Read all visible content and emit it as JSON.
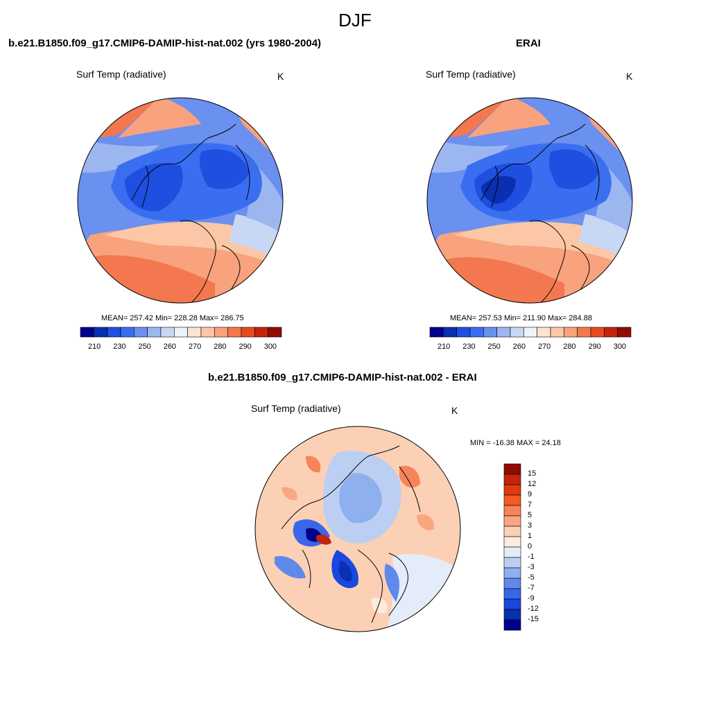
{
  "figure": {
    "season_title": "DJF"
  },
  "chart_data": [
    {
      "type": "polar-contour-map",
      "title": "b.e21.B1850.f09_g17.CMIP6-DAMIP-hist-nat.002 (yrs 1980-2004)",
      "variable": "Surf Temp (radiative)",
      "units": "K",
      "stats_text": "MEAN= 257.42  Min= 228.28  Max= 286.75",
      "mean": 257.42,
      "min": 228.28,
      "max": 286.75,
      "colorbar": {
        "orientation": "horizontal",
        "tick_labels": [
          "210",
          "230",
          "250",
          "260",
          "270",
          "280",
          "290",
          "300"
        ],
        "colors": [
          "#00008c",
          "#0a2fb0",
          "#1e4fe0",
          "#3a6ef0",
          "#6a90f0",
          "#9cb6f0",
          "#c8d8f4",
          "#eef3fb",
          "#fde4d2",
          "#fcc7a6",
          "#f9a27e",
          "#f3784f",
          "#e84a1e",
          "#c4240c",
          "#8f0c04"
        ]
      }
    },
    {
      "type": "polar-contour-map",
      "title": "ERAI",
      "variable": "Surf Temp (radiative)",
      "units": "K",
      "stats_text": "MEAN= 257.53  Min= 211.90  Max= 284.88",
      "mean": 257.53,
      "min": 211.9,
      "max": 284.88,
      "colorbar": {
        "orientation": "horizontal",
        "tick_labels": [
          "210",
          "230",
          "250",
          "260",
          "270",
          "280",
          "290",
          "300"
        ],
        "colors": [
          "#00008c",
          "#0a2fb0",
          "#1e4fe0",
          "#3a6ef0",
          "#6a90f0",
          "#9cb6f0",
          "#c8d8f4",
          "#eef3fb",
          "#fde4d2",
          "#fcc7a6",
          "#f9a27e",
          "#f3784f",
          "#e84a1e",
          "#c4240c",
          "#8f0c04"
        ]
      }
    },
    {
      "type": "polar-contour-map",
      "title": "b.e21.B1850.f09_g17.CMIP6-DAMIP-hist-nat.002 - ERAI",
      "variable": "Surf Temp (radiative)",
      "units": "K",
      "stats_text": "MIN = -16.38 MAX =  24.18",
      "min": -16.38,
      "max": 24.18,
      "colorbar": {
        "orientation": "vertical",
        "tick_labels": [
          "15",
          "12",
          "9",
          "7",
          "5",
          "3",
          "1",
          "0",
          "-1",
          "-3",
          "-5",
          "-7",
          "-9",
          "-12",
          "-15"
        ],
        "colors": [
          "#8f0c04",
          "#c4240c",
          "#e03a10",
          "#f55a22",
          "#f7835a",
          "#f9a77f",
          "#fcd0b4",
          "#fdebde",
          "#e4ecfa",
          "#bccff2",
          "#8fb0ee",
          "#5f8aec",
          "#3a66e8",
          "#1848dd",
          "#0a2fb0",
          "#00008c"
        ]
      }
    }
  ]
}
